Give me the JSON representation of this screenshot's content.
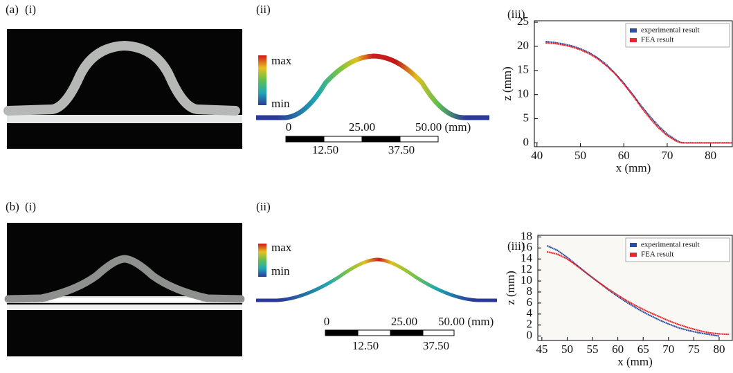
{
  "panels": [
    {
      "label": "(a)",
      "parts": [
        "(i)",
        "(ii)",
        "(iii)"
      ],
      "colorbar": [
        "max",
        "min"
      ],
      "scale_top": [
        "0",
        "25.00",
        "50.00 (mm)"
      ],
      "scale_bottom": [
        "12.50",
        "37.50"
      ]
    },
    {
      "label": "(b)",
      "parts": [
        "(i)",
        "(ii)",
        "(iii)"
      ],
      "colorbar": [
        "max",
        "min"
      ],
      "scale_top": [
        "0",
        "25.00",
        "50.00 (mm)"
      ],
      "scale_bottom": [
        "12.50",
        "37.50"
      ]
    }
  ],
  "chart_data": [
    {
      "type": "line",
      "xlabel": "x (mm)",
      "ylabel": "z (mm)",
      "x": [
        42,
        44,
        46,
        48,
        50,
        52,
        54,
        56,
        58,
        60,
        62,
        64,
        66,
        68,
        70,
        72,
        73,
        74,
        76,
        78,
        80,
        82,
        85
      ],
      "series": [
        {
          "name": "experimental result",
          "color": "#2b4ea0",
          "values": [
            21.0,
            20.8,
            20.5,
            20.1,
            19.5,
            18.7,
            17.6,
            16.2,
            14.4,
            12.4,
            10.1,
            7.7,
            5.5,
            3.5,
            1.8,
            0.6,
            0.1,
            0,
            0,
            0,
            0,
            0,
            0
          ]
        },
        {
          "name": "FEA result",
          "color": "#e8262b",
          "values": [
            20.7,
            20.6,
            20.3,
            19.9,
            19.3,
            18.5,
            17.4,
            16.0,
            14.3,
            12.2,
            9.9,
            7.4,
            5.1,
            3.1,
            1.5,
            0.4,
            0.05,
            0,
            0,
            0,
            0,
            0,
            0
          ]
        }
      ],
      "xlim": [
        39.4,
        85
      ],
      "ylim": [
        -0.8,
        25.3
      ],
      "xticks": [
        40,
        50,
        60,
        70,
        80
      ],
      "yticks": [
        0,
        5,
        10,
        15,
        20,
        25
      ],
      "legend": "upper right"
    },
    {
      "type": "line",
      "xlabel": "x (mm)",
      "ylabel": "z (mm)",
      "x": [
        46,
        48,
        50,
        52,
        54,
        56,
        58,
        60,
        62,
        64,
        66,
        68,
        70,
        72,
        74,
        76,
        78,
        80,
        82
      ],
      "series": [
        {
          "name": "experimental result",
          "color": "#2b4ea0",
          "values": [
            16.4,
            15.6,
            14.3,
            12.8,
            11.3,
            9.9,
            8.5,
            7.2,
            6.0,
            4.9,
            3.9,
            3.0,
            2.2,
            1.5,
            1.0,
            0.6,
            0.3,
            0.0,
            null
          ]
        },
        {
          "name": "FEA result",
          "color": "#e8262b",
          "values": [
            15.3,
            14.9,
            14.0,
            12.7,
            11.3,
            9.9,
            8.6,
            7.4,
            6.3,
            5.3,
            4.4,
            3.6,
            2.8,
            2.1,
            1.5,
            1.0,
            0.6,
            0.4,
            0.3
          ]
        }
      ],
      "xlim": [
        44.2,
        82.6
      ],
      "ylim": [
        -0.8,
        18.3
      ],
      "xticks": [
        45,
        50,
        55,
        60,
        65,
        70,
        75,
        80
      ],
      "yticks": [
        0,
        2,
        4,
        6,
        8,
        10,
        12,
        14,
        16,
        18
      ],
      "legend": "upper right"
    }
  ]
}
